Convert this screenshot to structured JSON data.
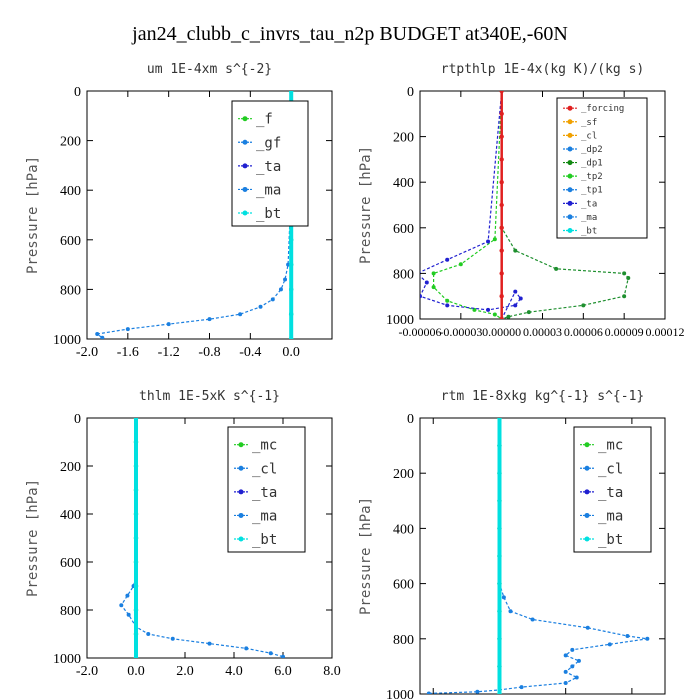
{
  "title": "jan24_clubb_c_invrs_tau_n2p  BUDGET at340E,-60N",
  "colors": {
    "green": "#22cc22",
    "blue": "#1a7fe0",
    "navy": "#2020d0",
    "cyan": "#00e0e0",
    "red": "#e02020",
    "orange": "#f0a000",
    "darkgreen": "#118811",
    "olive": "#1e8f2e"
  },
  "chart_data": [
    {
      "type": "line",
      "title": "um  1E-4xm s^{-2}",
      "ylabel": "Pressure [hPa]",
      "xlim": [
        -2.0,
        0.4
      ],
      "ylim": [
        1000,
        0
      ],
      "xticks": [
        "-2.0",
        "-1.6",
        "-1.2",
        "-0.8",
        "-0.4",
        "0.0"
      ],
      "xtick_values": [
        -2.0,
        -1.6,
        -1.2,
        -0.8,
        -0.4,
        0.0
      ],
      "yticks": [
        "0",
        "200",
        "400",
        "600",
        "800",
        "1000"
      ],
      "ytick_values": [
        0,
        200,
        400,
        600,
        800,
        1000
      ],
      "legend": [
        "_f",
        "_gf",
        "_ta",
        "_ma",
        "_bt"
      ],
      "legend_colors": [
        "#22cc22",
        "#1a7fe0",
        "#2020d0",
        "#1a7fe0",
        "#00e0e0"
      ],
      "series": [
        {
          "name": "_f",
          "color": "#22cc22",
          "x": [
            0,
            0,
            0,
            0,
            0,
            0,
            0,
            0,
            0,
            0,
            0
          ],
          "y": [
            0,
            100,
            200,
            300,
            400,
            500,
            600,
            700,
            800,
            900,
            1000
          ]
        },
        {
          "name": "_gf",
          "color": "#1a7fe0",
          "x": [
            0.0,
            -0.01,
            -0.03,
            -0.06,
            -0.1,
            -0.18,
            -0.3,
            -0.5,
            -0.8,
            -1.2,
            -1.6,
            -1.9,
            -1.85
          ],
          "y": [
            0,
            500,
            700,
            760,
            800,
            840,
            870,
            900,
            920,
            940,
            960,
            980,
            995
          ]
        },
        {
          "name": "_bt",
          "color": "#00e0e0",
          "x": [
            0,
            0,
            0,
            0,
            0,
            0,
            0,
            0,
            0,
            0,
            0
          ],
          "y": [
            0,
            100,
            200,
            300,
            400,
            500,
            600,
            700,
            800,
            900,
            1000
          ]
        }
      ]
    },
    {
      "type": "line",
      "title": "rtpthlp  1E-4x(kg K)/(kg s)",
      "ylabel": "Pressure [hPa]",
      "xlim": [
        -6e-05,
        0.00012
      ],
      "ylim": [
        1000,
        0
      ],
      "xticks": [
        "-0.00006",
        "-0.00003",
        "0.00000",
        "0.00003",
        "0.00006",
        "0.00009",
        "0.00012"
      ],
      "xtick_values": [
        -6e-05,
        -3e-05,
        0.0,
        3e-05,
        6e-05,
        9e-05,
        0.00012
      ],
      "yticks": [
        "0",
        "200",
        "400",
        "600",
        "800",
        "1000"
      ],
      "ytick_values": [
        0,
        200,
        400,
        600,
        800,
        1000
      ],
      "legend": [
        "_forcing",
        "_sf",
        "_cl",
        "_dp2",
        "_dp1",
        "_tp2",
        "_tp1",
        "_ta",
        "_ma",
        "_bt"
      ],
      "legend_colors": [
        "#e02020",
        "#f0a000",
        "#f0a000",
        "#1a7fe0",
        "#118811",
        "#22cc22",
        "#1a7fe0",
        "#2020d0",
        "#1a7fe0",
        "#00e0e0"
      ],
      "series": [
        {
          "name": "_tp2",
          "color": "#1e8f2e",
          "x": [
            0.0,
            0.0,
            1e-05,
            4e-05,
            9e-05,
            9.3e-05,
            9e-05,
            6e-05,
            2e-05,
            5e-06,
            0.0
          ],
          "y": [
            0,
            600,
            700,
            780,
            800,
            820,
            900,
            940,
            970,
            990,
            1000
          ]
        },
        {
          "name": "_tp1",
          "color": "#22cc22",
          "x": [
            0.0,
            -5e-06,
            -3e-05,
            -5e-05,
            -5e-05,
            -4e-05,
            -2e-05,
            -5e-06,
            0.0
          ],
          "y": [
            0,
            650,
            760,
            800,
            860,
            920,
            960,
            980,
            1000
          ]
        },
        {
          "name": "_ta",
          "color": "#2020d0",
          "x": [
            0.0,
            -1e-05,
            -4e-05,
            -6.2e-05,
            -5.5e-05,
            -6e-05,
            -4e-05,
            -1e-05,
            1e-05,
            1.4e-05,
            1e-05,
            0.0
          ],
          "y": [
            0,
            660,
            740,
            800,
            840,
            900,
            940,
            960,
            940,
            910,
            880,
            1000
          ]
        },
        {
          "name": "_forcing",
          "color": "#e02020",
          "x": [
            0,
            0,
            0,
            0,
            0,
            0,
            0,
            0,
            0,
            0,
            0
          ],
          "y": [
            0,
            100,
            200,
            300,
            400,
            500,
            600,
            700,
            800,
            900,
            1000
          ]
        }
      ]
    },
    {
      "type": "line",
      "title": "thlm  1E-5xK s^{-1}",
      "ylabel": "Pressure [hPa]",
      "xlim": [
        -2.0,
        8.0
      ],
      "ylim": [
        1000,
        0
      ],
      "xticks": [
        "-2.0",
        "0.0",
        "2.0",
        "4.0",
        "6.0",
        "8.0"
      ],
      "xtick_values": [
        -2.0,
        0.0,
        2.0,
        4.0,
        6.0,
        8.0
      ],
      "yticks": [
        "0",
        "200",
        "400",
        "600",
        "800",
        "1000"
      ],
      "ytick_values": [
        0,
        200,
        400,
        600,
        800,
        1000
      ],
      "legend": [
        "_mc",
        "_cl",
        "_ta",
        "_ma",
        "_bt"
      ],
      "legend_colors": [
        "#22cc22",
        "#1a7fe0",
        "#2020d0",
        "#1a7fe0",
        "#00e0e0"
      ],
      "series": [
        {
          "name": "_mc",
          "color": "#22cc22",
          "x": [
            0,
            0,
            0,
            0,
            0,
            0,
            0,
            0,
            0,
            0,
            0
          ],
          "y": [
            0,
            100,
            200,
            300,
            400,
            500,
            600,
            700,
            800,
            900,
            1000
          ]
        },
        {
          "name": "_cl",
          "color": "#1a7fe0",
          "x": [
            0.0,
            0.0,
            -0.1,
            -0.35,
            -0.6,
            -0.3,
            0.0,
            0.5,
            1.5,
            3.0,
            4.5,
            5.5,
            6.0
          ],
          "y": [
            0,
            650,
            700,
            740,
            780,
            820,
            870,
            900,
            920,
            940,
            960,
            980,
            995
          ]
        },
        {
          "name": "_bt",
          "color": "#00e0e0",
          "x": [
            0,
            0,
            0,
            0,
            0,
            0,
            0,
            0,
            0,
            0,
            0
          ],
          "y": [
            0,
            100,
            200,
            300,
            400,
            500,
            600,
            700,
            800,
            900,
            1000
          ]
        }
      ]
    },
    {
      "type": "line",
      "title": "rtm  1E-8xkg kg^{-1} s^{-1}",
      "ylabel": "Pressure [hPa]",
      "xlim": [
        -0.36,
        0.75
      ],
      "ylim": [
        1000,
        0
      ],
      "xticks": [
        "-0.30",
        "0.00",
        "0.30",
        "0.60"
      ],
      "xtick_values": [
        -0.3,
        0.0,
        0.3,
        0.6
      ],
      "yticks": [
        "0",
        "200",
        "400",
        "600",
        "800",
        "1000"
      ],
      "ytick_values": [
        0,
        200,
        400,
        600,
        800,
        1000
      ],
      "legend": [
        "_mc",
        "_cl",
        "_ta",
        "_ma",
        "_bt"
      ],
      "legend_colors": [
        "#22cc22",
        "#1a7fe0",
        "#2020d0",
        "#1a7fe0",
        "#00e0e0"
      ],
      "series": [
        {
          "name": "_mc",
          "color": "#22cc22",
          "x": [
            0,
            0,
            0,
            0,
            0,
            0,
            0,
            0,
            0,
            0,
            0
          ],
          "y": [
            0,
            100,
            200,
            300,
            400,
            500,
            600,
            700,
            800,
            900,
            1000
          ]
        },
        {
          "name": "_cl",
          "color": "#1a7fe0",
          "x": [
            0.0,
            0.0,
            0.02,
            0.05,
            0.15,
            0.4,
            0.58,
            0.67,
            0.5,
            0.33,
            0.3,
            0.36,
            0.33,
            0.3,
            0.35,
            0.3,
            0.1,
            0.0,
            -0.1,
            -0.32
          ],
          "y": [
            0,
            600,
            650,
            700,
            730,
            760,
            790,
            800,
            820,
            840,
            860,
            880,
            900,
            920,
            940,
            960,
            975,
            985,
            992,
            998
          ]
        },
        {
          "name": "_bt",
          "color": "#00e0e0",
          "x": [
            0,
            0,
            0,
            0,
            0,
            0,
            0,
            0,
            0,
            0,
            0
          ],
          "y": [
            0,
            100,
            200,
            300,
            400,
            500,
            600,
            700,
            800,
            900,
            1000
          ]
        }
      ]
    }
  ]
}
